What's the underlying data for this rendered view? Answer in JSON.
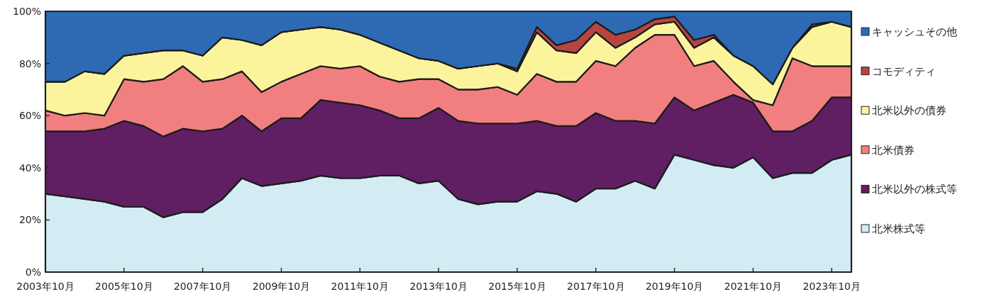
{
  "chart_data": {
    "type": "area",
    "stacked": true,
    "legend": "right",
    "grid": false,
    "x": [
      "2003-10",
      "2004-04",
      "2004-10",
      "2005-04",
      "2005-10",
      "2006-04",
      "2006-10",
      "2007-04",
      "2007-10",
      "2008-04",
      "2008-10",
      "2009-04",
      "2009-10",
      "2010-04",
      "2010-10",
      "2011-04",
      "2011-10",
      "2012-04",
      "2012-10",
      "2013-04",
      "2013-10",
      "2014-04",
      "2014-10",
      "2015-04",
      "2015-10",
      "2016-04",
      "2016-10",
      "2017-04",
      "2017-10",
      "2018-04",
      "2018-10",
      "2019-04",
      "2019-10",
      "2020-04",
      "2020-10",
      "2021-04",
      "2021-10",
      "2022-04",
      "2022-10",
      "2023-04",
      "2023-10",
      "2024-04"
    ],
    "xlim": [
      "2003-10",
      "2024-04"
    ],
    "xticks": [
      {
        "value": "2003-10",
        "label": "2003年10月"
      },
      {
        "value": "2005-10",
        "label": "2005年10月"
      },
      {
        "value": "2007-10",
        "label": "2007年10月"
      },
      {
        "value": "2009-10",
        "label": "2009年10月"
      },
      {
        "value": "2011-10",
        "label": "2011年10月"
      },
      {
        "value": "2013-10",
        "label": "2013年10月"
      },
      {
        "value": "2015-10",
        "label": "2015年10月"
      },
      {
        "value": "2017-10",
        "label": "2017年10月"
      },
      {
        "value": "2019-10",
        "label": "2019年10月"
      },
      {
        "value": "2021-10",
        "label": "2021年10月"
      },
      {
        "value": "2023-10",
        "label": "2023年10月"
      }
    ],
    "ylim": [
      0,
      100
    ],
    "yticks": [
      {
        "value": 0,
        "label": "0%"
      },
      {
        "value": 20,
        "label": "20%"
      },
      {
        "value": 40,
        "label": "40%"
      },
      {
        "value": 60,
        "label": "60%"
      },
      {
        "value": 80,
        "label": "80%"
      },
      {
        "value": 100,
        "label": "100%"
      }
    ],
    "series": [
      {
        "name": "北米株式等",
        "color": "#d3ecf3",
        "values": [
          30,
          29,
          28,
          27,
          25,
          25,
          21,
          23,
          23,
          28,
          36,
          33,
          34,
          35,
          37,
          36,
          36,
          37,
          37,
          34,
          35,
          28,
          26,
          27,
          27,
          31,
          30,
          27,
          32,
          32,
          35,
          32,
          45,
          43,
          41,
          40,
          44,
          36,
          38,
          38,
          43,
          45
        ]
      },
      {
        "name": "北米以外の株式等",
        "color": "#5f1f62",
        "values": [
          24,
          25,
          26,
          28,
          33,
          31,
          31,
          32,
          31,
          27,
          24,
          21,
          25,
          24,
          29,
          29,
          28,
          25,
          22,
          25,
          28,
          30,
          31,
          30,
          30,
          27,
          26,
          29,
          29,
          26,
          23,
          25,
          22,
          19,
          24,
          28,
          21,
          18,
          16,
          20,
          24,
          22
        ]
      },
      {
        "name": "北米債券",
        "color": "#f27f7f",
        "values": [
          8,
          6,
          7,
          5,
          16,
          17,
          22,
          24,
          19,
          19,
          17,
          15,
          14,
          17,
          13,
          13,
          15,
          13,
          14,
          15,
          11,
          12,
          13,
          14,
          11,
          18,
          17,
          17,
          20,
          21,
          28,
          34,
          24,
          17,
          16,
          5,
          1,
          10,
          28,
          21,
          12,
          12
        ]
      },
      {
        "name": "北米以外の債券",
        "color": "#fbf49c",
        "values": [
          11,
          13,
          16,
          16,
          9,
          11,
          11,
          6,
          10,
          16,
          12,
          18,
          19,
          17,
          15,
          15,
          12,
          13,
          12,
          8,
          7,
          8,
          9,
          9,
          9,
          16,
          12,
          11,
          11,
          7,
          4,
          4,
          5,
          7,
          9,
          10,
          13,
          8,
          4,
          15,
          17,
          15
        ]
      },
      {
        "name": "コモディティ",
        "color": "#b5463f",
        "values": [
          0,
          0,
          0,
          0,
          0,
          0,
          0,
          0,
          0,
          0,
          0,
          0,
          0,
          0,
          0,
          0,
          0,
          0,
          0,
          0,
          0,
          0,
          0,
          0,
          1,
          2,
          2,
          5,
          4,
          5,
          3,
          2,
          2,
          3,
          1,
          0,
          0,
          0,
          0,
          1,
          0,
          0
        ]
      },
      {
        "name": "キャッシュその他",
        "color": "#2e6ab3",
        "values": [
          27,
          27,
          23,
          24,
          17,
          16,
          15,
          15,
          17,
          10,
          11,
          13,
          8,
          7,
          6,
          7,
          9,
          12,
          15,
          18,
          19,
          22,
          21,
          20,
          22,
          6,
          13,
          11,
          4,
          9,
          7,
          3,
          2,
          11,
          9,
          17,
          21,
          28,
          14,
          5,
          4,
          6
        ]
      }
    ]
  }
}
